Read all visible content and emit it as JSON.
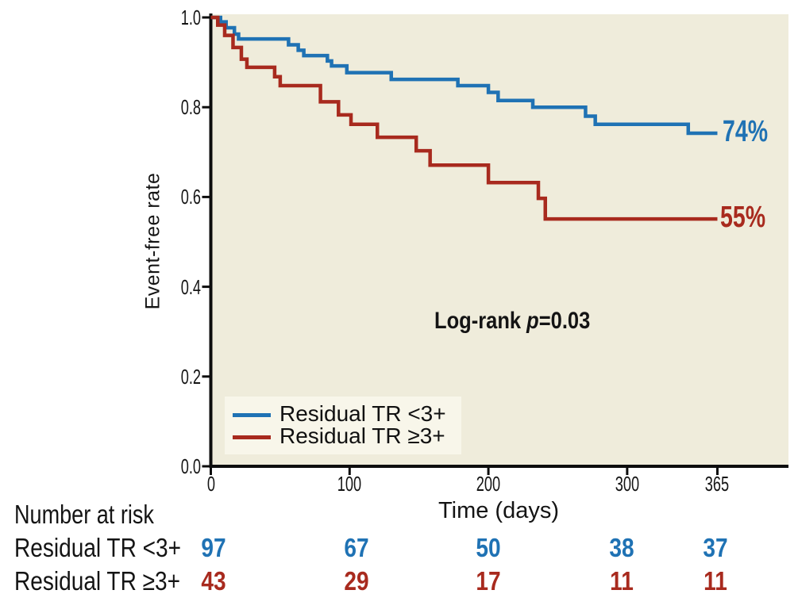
{
  "chart_data": {
    "type": "line",
    "subtype": "kaplan-meier-step",
    "xlabel": "Time (days)",
    "ylabel": "Event-free rate",
    "xlim": [
      0,
      365
    ],
    "ylim": [
      0.0,
      1.0
    ],
    "grid": false,
    "x_ticks": [
      0,
      100,
      200,
      300,
      365
    ],
    "y_tick_values": [
      0.0,
      0.2,
      0.4,
      0.6,
      0.8,
      1.0
    ],
    "y_tick_labels": [
      "0.0",
      "0.2",
      "0.4",
      "0.6",
      "0.8",
      "1.0"
    ],
    "annotation": {
      "prefix": "Log-rank ",
      "p": "p",
      "suffix": "=0.03"
    },
    "legend_position": "lower-left",
    "series": [
      {
        "name": "Residual TR <3+",
        "color": "#1F72B4",
        "end_label": "74%",
        "end_day": 365,
        "steps": [
          [
            0,
            1.0
          ],
          [
            7,
            0.99
          ],
          [
            11,
            0.977
          ],
          [
            17,
            0.963
          ],
          [
            20,
            0.952
          ],
          [
            56,
            0.939
          ],
          [
            63,
            0.927
          ],
          [
            67,
            0.915
          ],
          [
            84,
            0.903
          ],
          [
            87,
            0.892
          ],
          [
            98,
            0.877
          ],
          [
            130,
            0.862
          ],
          [
            178,
            0.848
          ],
          [
            200,
            0.833
          ],
          [
            207,
            0.815
          ],
          [
            232,
            0.8
          ],
          [
            270,
            0.78
          ],
          [
            277,
            0.762
          ],
          [
            344,
            0.742
          ]
        ]
      },
      {
        "name": "Residual TR ≥3+",
        "color": "#A82A1E",
        "end_label": "55%",
        "end_day": 365,
        "steps": [
          [
            0,
            1.0
          ],
          [
            5,
            0.983
          ],
          [
            10,
            0.96
          ],
          [
            16,
            0.933
          ],
          [
            22,
            0.907
          ],
          [
            26,
            0.889
          ],
          [
            46,
            0.868
          ],
          [
            50,
            0.848
          ],
          [
            79,
            0.812
          ],
          [
            92,
            0.783
          ],
          [
            101,
            0.762
          ],
          [
            120,
            0.733
          ],
          [
            148,
            0.703
          ],
          [
            158,
            0.671
          ],
          [
            200,
            0.632
          ],
          [
            236,
            0.597
          ],
          [
            241,
            0.551
          ]
        ]
      }
    ]
  },
  "risk_table": {
    "title": "Number at risk",
    "columns_days": [
      0,
      100,
      200,
      300,
      365
    ],
    "rows": [
      {
        "label": "Residual TR <3+",
        "color": "#1F72B4",
        "values": [
          "97",
          "67",
          "50",
          "38",
          "37"
        ]
      },
      {
        "label": "Residual TR ≥3+",
        "color": "#A82A1E",
        "values": [
          "43",
          "29",
          "17",
          "11",
          "11"
        ]
      }
    ]
  }
}
